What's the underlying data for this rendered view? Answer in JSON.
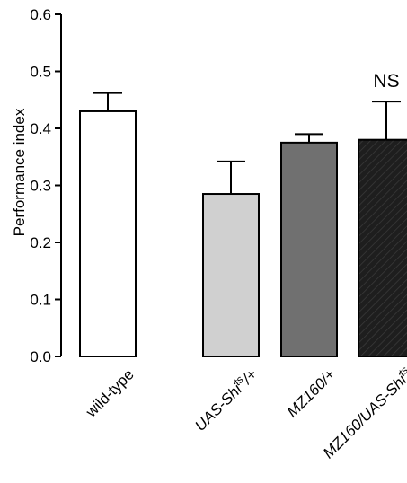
{
  "chart_data": {
    "type": "bar",
    "ylabel": "Performance index",
    "ylim": [
      0,
      0.6
    ],
    "yticks": [
      "0.0",
      "0.1",
      "0.2",
      "0.3",
      "0.4",
      "0.5",
      "0.6"
    ],
    "categories": [
      {
        "base": "wild-type",
        "sup": "",
        "tail": "",
        "italic": false
      },
      {
        "base": "UAS-Shi",
        "sup": "ts",
        "tail": "/+",
        "italic": true
      },
      {
        "base": "MZ160/+",
        "sup": "",
        "tail": "",
        "italic": true
      },
      {
        "base": "MZ160/UAS-Shi",
        "sup": "ts",
        "tail": "",
        "italic": true
      }
    ],
    "values": [
      0.43,
      0.285,
      0.375,
      0.38
    ],
    "errors": [
      0.032,
      0.057,
      0.015,
      0.067
    ],
    "colors": [
      "#ffffff",
      "#d0d0d0",
      "#707070",
      "#1e1e1e"
    ],
    "hatched": [
      false,
      false,
      false,
      true
    ],
    "annotations": [
      {
        "category_index": 3,
        "text": "NS"
      }
    ]
  }
}
